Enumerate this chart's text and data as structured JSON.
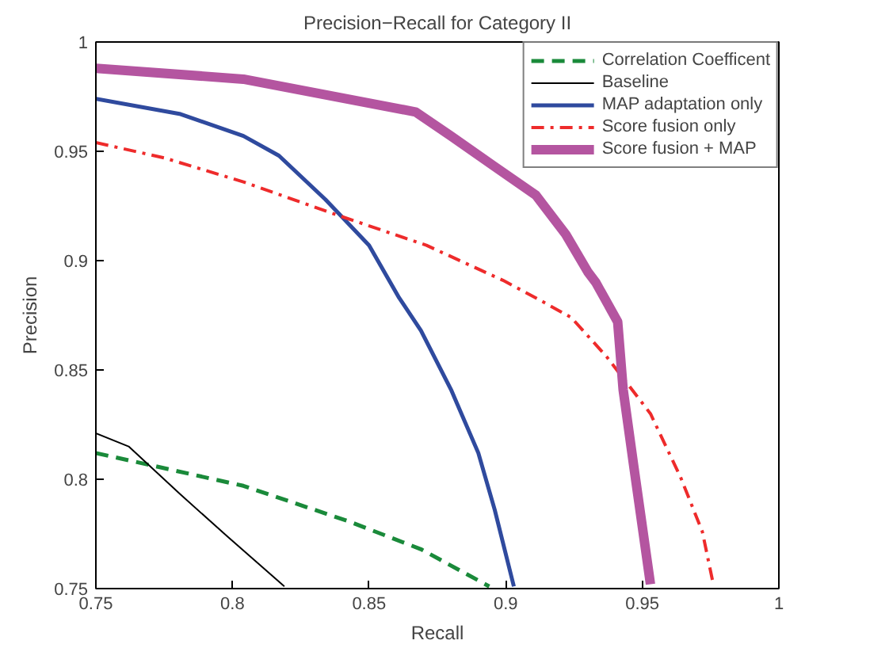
{
  "chart_data": {
    "type": "line",
    "title": "Precision−Recall for Category II",
    "xlabel": "Recall",
    "ylabel": "Precision",
    "xlim": [
      0.75,
      1
    ],
    "ylim": [
      0.75,
      1
    ],
    "xticks": [
      0.75,
      0.8,
      0.85,
      0.9,
      0.95,
      1
    ],
    "yticks": [
      0.75,
      0.8,
      0.85,
      0.9,
      0.95,
      1
    ],
    "grid": false,
    "legend": "top right",
    "series": [
      {
        "name": "Correlation Coefficent",
        "color": "#1a8a3a",
        "line_style": "dashed",
        "x": [
          0.75,
          0.804,
          0.842,
          0.869,
          0.894
        ],
        "values": [
          0.812,
          0.797,
          0.781,
          0.768,
          0.751
        ]
      },
      {
        "name": "Baseline",
        "color": "#000000",
        "line_style": "solid",
        "x": [
          0.75,
          0.762,
          0.781,
          0.798,
          0.819
        ],
        "values": [
          0.821,
          0.815,
          0.793,
          0.774,
          0.751
        ]
      },
      {
        "name": "MAP adaptation only",
        "color": "#2f4a9e",
        "line_style": "solid",
        "x": [
          0.75,
          0.781,
          0.804,
          0.817,
          0.834,
          0.85,
          0.861,
          0.869,
          0.88,
          0.89,
          0.896,
          0.903
        ],
        "values": [
          0.974,
          0.967,
          0.957,
          0.948,
          0.928,
          0.907,
          0.883,
          0.868,
          0.841,
          0.812,
          0.786,
          0.751
        ]
      },
      {
        "name": "Score fusion only",
        "color": "#ee2b2b",
        "line_style": "dashdot",
        "x": [
          0.75,
          0.775,
          0.804,
          0.838,
          0.871,
          0.899,
          0.911,
          0.924,
          0.937,
          0.953,
          0.964,
          0.972,
          0.976
        ],
        "values": [
          0.954,
          0.947,
          0.936,
          0.921,
          0.907,
          0.891,
          0.883,
          0.874,
          0.856,
          0.83,
          0.801,
          0.776,
          0.752
        ]
      },
      {
        "name": "Score fusion + MAP",
        "color": "#b455a0",
        "line_style": "solid",
        "x": [
          0.75,
          0.804,
          0.867,
          0.88,
          0.896,
          0.911,
          0.922,
          0.93,
          0.933,
          0.941,
          0.943,
          0.947,
          0.953
        ],
        "values": [
          0.988,
          0.983,
          0.968,
          0.957,
          0.943,
          0.93,
          0.912,
          0.895,
          0.89,
          0.872,
          0.841,
          0.805,
          0.752
        ]
      }
    ]
  }
}
